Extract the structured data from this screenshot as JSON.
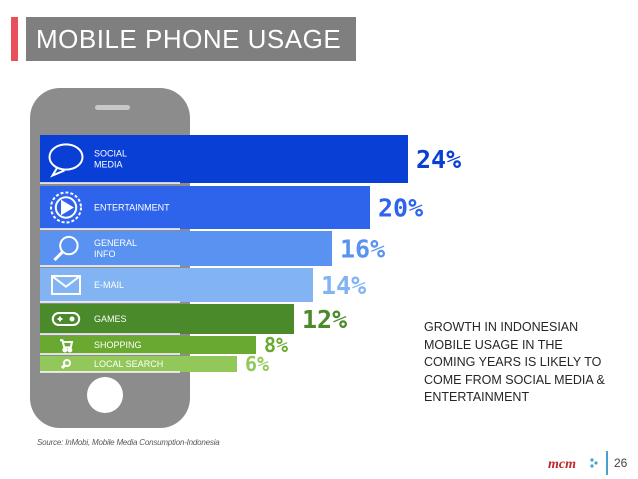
{
  "title": "MOBILE PHONE USAGE",
  "note": "GROWTH IN INDONESIAN MOBILE USAGE IN THE COMING YEARS IS LIKELY TO COME FROM SOCIAL MEDIA & ENTERTAINMENT",
  "source": "Source: InMobi, Mobile Media Consumption-Indonesia",
  "page_number": "26",
  "colors": {
    "title_bg": "#7f7f7f",
    "accent": "#e8505b",
    "phone_body": "#8c8c8c",
    "text": "#262626"
  },
  "chart_data": {
    "type": "bar",
    "orientation": "horizontal",
    "title": "",
    "xlabel": "",
    "ylabel": "",
    "categories": [
      "SOCIAL MEDIA",
      "ENTERTAINMENT",
      "GENERAL INFO",
      "E-MAIL",
      "GAMES",
      "SHOPPING",
      "LOCAL SEARCH"
    ],
    "values": [
      24,
      20,
      16,
      14,
      12,
      8,
      6
    ],
    "value_labels": [
      "24%",
      "20%",
      "16%",
      "14%",
      "12%",
      "8%",
      "6%"
    ],
    "icons": [
      "speech-bubble-icon",
      "play-icon",
      "magnifier-icon",
      "envelope-icon",
      "gamepad-icon",
      "shopping-cart-icon",
      "magnifier-icon"
    ],
    "colors": [
      "#0a3fd6",
      "#2e64ec",
      "#5a92f2",
      "#82b4f4",
      "#4a8a2a",
      "#6aa930",
      "#92c85a"
    ],
    "label_colors": [
      "#0a3fd6",
      "#2e64ec",
      "#5a92f2",
      "#82b4f4",
      "#4a8a2a",
      "#6aa930",
      "#92c85a"
    ],
    "xlim": [
      0,
      24
    ],
    "grid": false,
    "legend": "none"
  }
}
